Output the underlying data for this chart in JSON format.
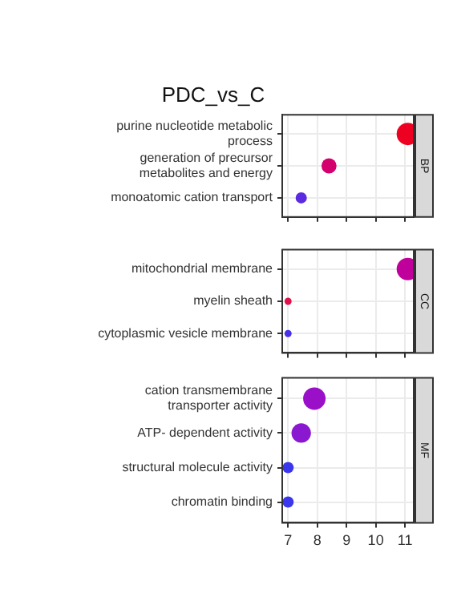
{
  "chart_data": [
    {
      "type": "bubble",
      "title": "PDC_vs_C",
      "orientation": "horizontal",
      "categories": [
        "purine nucleotide metabolic process",
        "generation of precursor metabolites and energy",
        "monoatomic cation transport"
      ],
      "values": [
        11.1,
        8.4,
        7.45
      ],
      "sizes": [
        1,
        0.45,
        0.25
      ],
      "colors": [
        "#ee0022",
        "#d4006e",
        "#5a2be0"
      ],
      "xlim": [
        6.8,
        11.3
      ],
      "xticks": [
        7,
        8,
        9,
        10,
        11
      ],
      "grid": true,
      "tick_labels": "y",
      "annotations": [
        "BP"
      ]
    },
    {
      "type": "bubble",
      "orientation": "horizontal",
      "categories": [
        "mitochondrial membrane",
        "myelin sheath",
        "cytoplasmic vesicle membrane"
      ],
      "values": [
        11.1,
        7.0,
        7.0
      ],
      "sizes": [
        1,
        0.1,
        0.1
      ],
      "colors": [
        "#c0009a",
        "#e0104a",
        "#4830e8"
      ],
      "xlim": [
        6.8,
        11.3
      ],
      "xticks": [
        7,
        8,
        9,
        10,
        11
      ],
      "grid": true,
      "tick_labels": "y",
      "annotations": [
        "CC"
      ]
    },
    {
      "type": "bubble",
      "orientation": "horizontal",
      "categories": [
        "cation transmembrane transporter activity",
        "ATP- dependent activity",
        "structural molecule activity",
        "chromatin binding"
      ],
      "values": [
        7.9,
        7.45,
        7.0,
        7.0
      ],
      "sizes": [
        1,
        0.75,
        0.25,
        0.25
      ],
      "colors": [
        "#9a10c8",
        "#8a18d0",
        "#3a36ec",
        "#3a36ec"
      ],
      "xlim": [
        6.8,
        11.3
      ],
      "xticks": [
        7,
        8,
        9,
        10,
        11
      ],
      "grid": true,
      "annotations": [
        "MF"
      ]
    }
  ]
}
